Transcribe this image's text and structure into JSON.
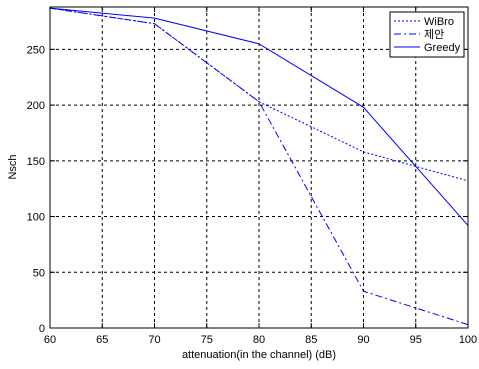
{
  "chart_data": {
    "type": "line",
    "title": "",
    "xlabel": "attenuation(in the channel) (dB)",
    "ylabel": "Nsch",
    "xlim": [
      60,
      100
    ],
    "ylim": [
      0,
      288
    ],
    "xticks": [
      60,
      65,
      70,
      75,
      80,
      85,
      90,
      95,
      100
    ],
    "yticks": [
      0,
      50,
      100,
      150,
      200,
      250
    ],
    "grid": true,
    "legend_position": "top-right",
    "line_color": "#0000ff",
    "x": [
      60,
      70,
      80,
      90,
      100
    ],
    "series": [
      {
        "name": "WiBro",
        "style": "dotted",
        "values": [
          287,
          273,
          203,
          158,
          132
        ]
      },
      {
        "name": "제안",
        "style": "dashdot",
        "values": [
          287,
          273,
          203,
          33,
          3
        ]
      },
      {
        "name": "Greedy",
        "style": "solid",
        "values": [
          287,
          278,
          255,
          198,
          92
        ]
      }
    ]
  }
}
